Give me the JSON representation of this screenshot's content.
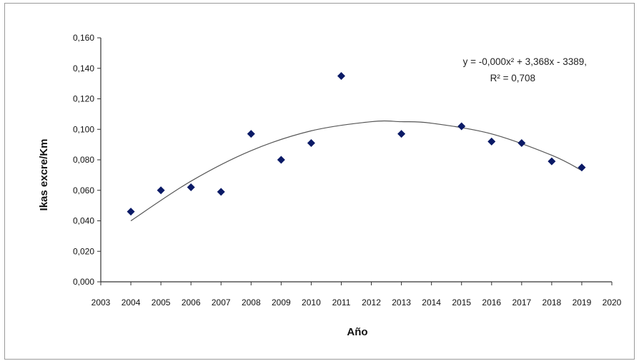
{
  "chart_data": {
    "type": "scatter",
    "xlabel": "Año",
    "ylabel": "Ikas excre/Km",
    "xlim": [
      2003,
      2020
    ],
    "ylim": [
      0,
      0.16
    ],
    "x_ticks": [
      "2003",
      "2004",
      "2005",
      "2006",
      "2007",
      "2008",
      "2009",
      "2010",
      "2011",
      "2012",
      "2013",
      "2014",
      "2015",
      "2016",
      "2017",
      "2018",
      "2019",
      "2020"
    ],
    "y_ticks": [
      "0,000",
      "0,020",
      "0,040",
      "0,060",
      "0,080",
      "0,100",
      "0,120",
      "0,140",
      "0,160"
    ],
    "marker_color": "#0a1a66",
    "series": [
      {
        "x": [
          2004,
          2005,
          2006,
          2007,
          2008,
          2009,
          2010,
          2011,
          2013,
          2015,
          2016,
          2017,
          2018,
          2019
        ],
        "y": [
          0.046,
          0.06,
          0.062,
          0.059,
          0.097,
          0.08,
          0.091,
          0.135,
          0.097,
          0.102,
          0.092,
          0.091,
          0.079,
          0.075
        ]
      }
    ],
    "trendline": {
      "type": "polynomial",
      "x": [
        2004,
        2006,
        2008,
        2010,
        2012,
        2013,
        2014,
        2016,
        2018,
        2019
      ],
      "y": [
        0.04,
        0.066,
        0.086,
        0.099,
        0.105,
        0.105,
        0.104,
        0.097,
        0.083,
        0.073
      ],
      "equation": "y = -0,000x² + 3,368x - 3389,",
      "r2": "R² = 0,708"
    }
  }
}
